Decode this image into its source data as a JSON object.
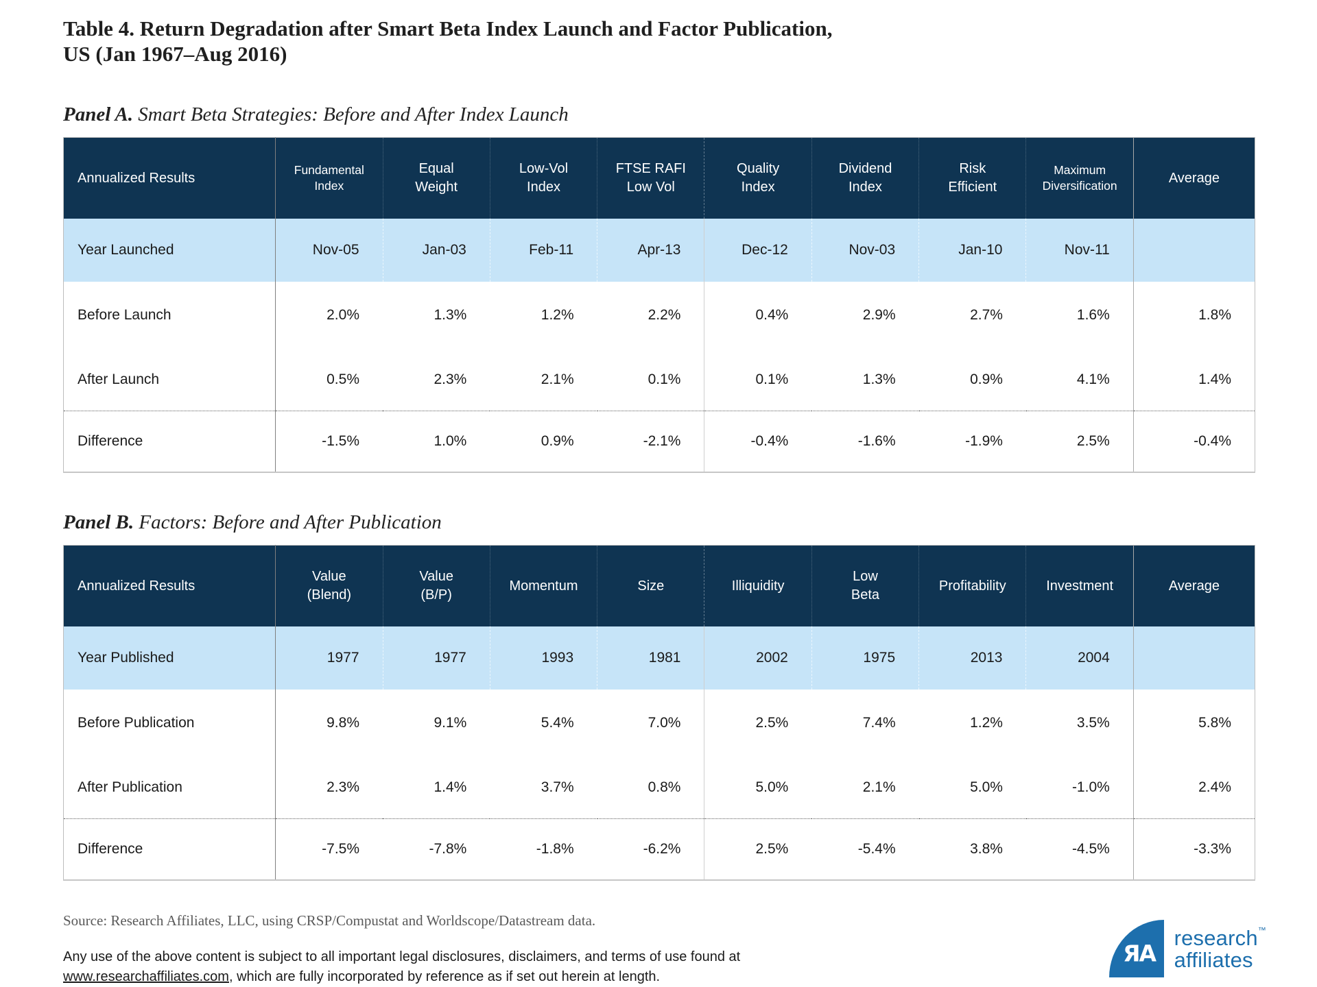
{
  "page": {
    "title": "Table 4. Return Degradation after Smart Beta Index Launch and Factor Publication,\nUS (Jan 1967–Aug 2016)"
  },
  "colors": {
    "header_navy": "#0f3452",
    "highlight_blue": "#c6e4f8",
    "logo_blue": "#1d6fad"
  },
  "panels": [
    {
      "label": "Panel A.",
      "subtitle": "Smart Beta Strategies: Before and After Index Launch",
      "table": {
        "header": [
          "Annualized Results",
          "Fundamental\nIndex",
          "Equal\nWeight",
          "Low-Vol\nIndex",
          "FTSE RAFI\nLow Vol",
          "Quality\nIndex",
          "Dividend\nIndex",
          "Risk\nEfficient",
          "Maximum\nDiversification",
          "Average"
        ],
        "rows": [
          {
            "label": "Year Launched",
            "style": "hl",
            "values": [
              "Nov-05",
              "Jan-03",
              "Feb-11",
              "Apr-13",
              "Dec-12",
              "Nov-03",
              "Jan-10",
              "Nov-11",
              ""
            ]
          },
          {
            "label": "Before Launch",
            "style": "d1",
            "values": [
              "2.0%",
              "1.3%",
              "1.2%",
              "2.2%",
              "0.4%",
              "2.9%",
              "2.7%",
              "1.6%",
              "1.8%"
            ]
          },
          {
            "label": "After Launch",
            "style": "d2",
            "values": [
              "0.5%",
              "2.3%",
              "2.1%",
              "0.1%",
              "0.1%",
              "1.3%",
              "0.9%",
              "4.1%",
              "1.4%"
            ]
          },
          {
            "label": "Difference",
            "style": "diff",
            "values": [
              "-1.5%",
              "1.0%",
              "0.9%",
              "-2.1%",
              "-0.4%",
              "-1.6%",
              "-1.9%",
              "2.5%",
              "-0.4%"
            ]
          }
        ]
      }
    },
    {
      "label": "Panel B.",
      "subtitle": "Factors: Before and After Publication",
      "table": {
        "header": [
          "Annualized Results",
          "Value\n(Blend)",
          "Value\n(B/P)",
          "Momentum",
          "Size",
          "Illiquidity",
          "Low\nBeta",
          "Profitability",
          "Investment",
          "Average"
        ],
        "rows": [
          {
            "label": "Year Published",
            "style": "hl",
            "values": [
              "1977",
              "1977",
              "1993",
              "1981",
              "2002",
              "1975",
              "2013",
              "2004",
              ""
            ]
          },
          {
            "label": "Before Publication",
            "style": "d1",
            "values": [
              "9.8%",
              "9.1%",
              "5.4%",
              "7.0%",
              "2.5%",
              "7.4%",
              "1.2%",
              "3.5%",
              "5.8%"
            ]
          },
          {
            "label": "After Publication",
            "style": "d2",
            "values": [
              "2.3%",
              "1.4%",
              "3.7%",
              "0.8%",
              "5.0%",
              "2.1%",
              "5.0%",
              "-1.0%",
              "2.4%"
            ]
          },
          {
            "label": "Difference",
            "style": "diff",
            "values": [
              "-7.5%",
              "-7.8%",
              "-1.8%",
              "-6.2%",
              "2.5%",
              "-5.4%",
              "3.8%",
              "-4.5%",
              "-3.3%"
            ]
          }
        ]
      }
    }
  ],
  "footer": {
    "source": "Source: Research Affiliates, LLC, using CRSP/Compustat and Worldscope/Datastream data.",
    "legal_before_link": "Any use of the above content is subject to all important legal disclosures, disclaimers, and terms of use found at ",
    "legal_link": "www.researchaffiliates.com",
    "legal_after_link": ", which are fully incorporated by reference as if set out herein at length."
  },
  "logo": {
    "monogram": "ЯA",
    "line1": "research",
    "tm": "™",
    "line2": "affiliates"
  }
}
